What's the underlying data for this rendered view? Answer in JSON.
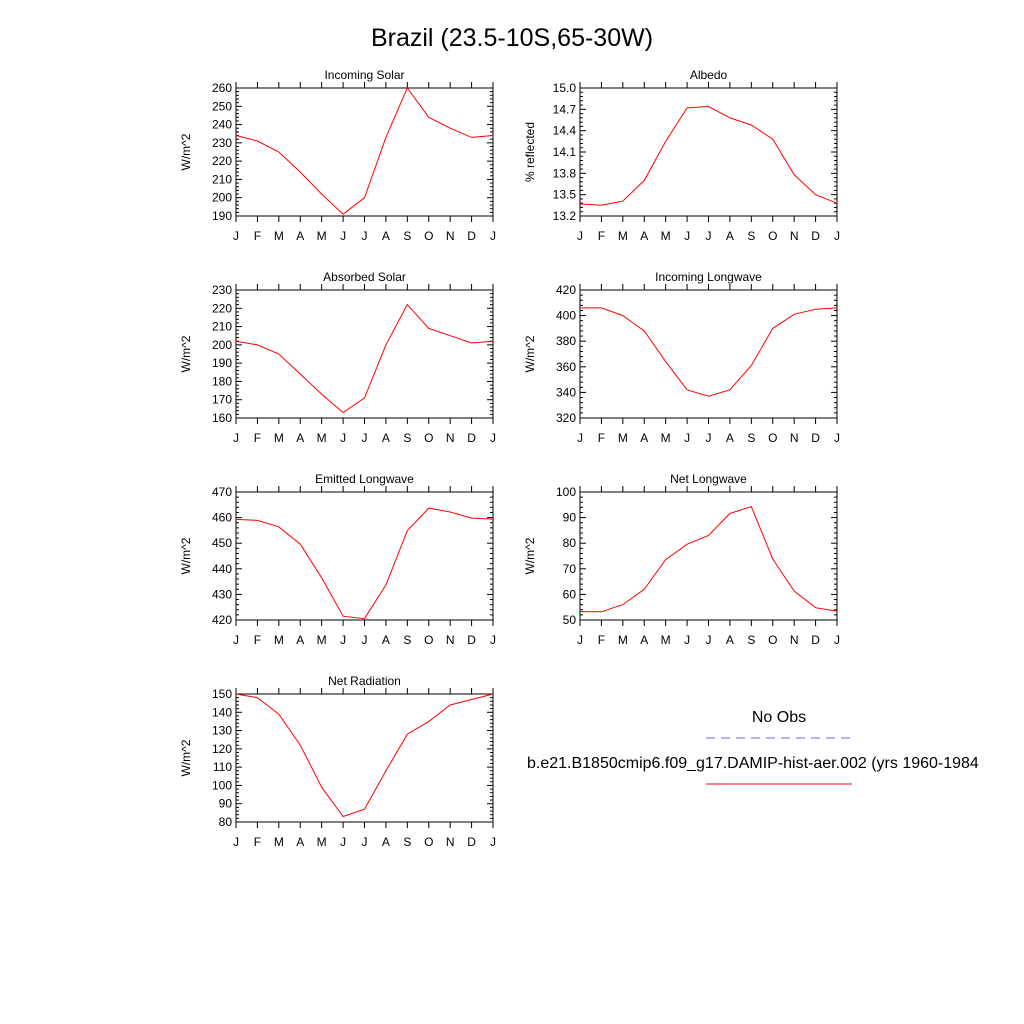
{
  "title": "Brazil (23.5-10S,65-30W)",
  "month_labels": [
    "J",
    "F",
    "M",
    "A",
    "M",
    "J",
    "J",
    "A",
    "S",
    "O",
    "N",
    "D",
    "J"
  ],
  "line_color": "#ff0000",
  "obs_color": "#6666ff",
  "legend": {
    "obs_label": "No Obs",
    "model_label": "b.e21.B1850cmip6.f09_g17.DAMIP-hist-aer.002 (yrs 1960-1984"
  },
  "chart_data": [
    {
      "type": "line",
      "title": "Incoming Solar",
      "ylabel": "W/m^2",
      "ylim": [
        190,
        260
      ],
      "yticks": [
        190,
        200,
        210,
        220,
        230,
        240,
        250,
        260
      ],
      "series": [
        {
          "values": [
            234,
            231,
            225,
            214,
            202,
            191,
            200,
            233,
            260,
            244,
            238,
            233,
            234
          ]
        }
      ]
    },
    {
      "type": "line",
      "title": "Albedo",
      "ylabel": "% reflected",
      "ylim": [
        13.2,
        15.0
      ],
      "yticks": [
        "13.2",
        "13.5",
        "13.8",
        "14.1",
        "14.4",
        "14.7",
        "15.0"
      ],
      "series": [
        {
          "values": [
            13.37,
            13.35,
            13.41,
            13.7,
            14.25,
            14.72,
            14.74,
            14.58,
            14.48,
            14.28,
            13.78,
            13.5,
            13.38
          ]
        }
      ]
    },
    {
      "type": "line",
      "title": "Absorbed Solar",
      "ylabel": "W/m^2",
      "ylim": [
        160,
        230
      ],
      "yticks": [
        160,
        170,
        180,
        190,
        200,
        210,
        220,
        230
      ],
      "series": [
        {
          "values": [
            202,
            200,
            195,
            184,
            173,
            163,
            171,
            200,
            222,
            209,
            205,
            201,
            202
          ]
        }
      ]
    },
    {
      "type": "line",
      "title": "Incoming Longwave",
      "ylabel": "W/m^2",
      "ylim": [
        320,
        420
      ],
      "yticks": [
        320,
        340,
        360,
        380,
        400,
        420
      ],
      "series": [
        {
          "values": [
            406,
            406,
            400,
            388,
            364,
            342,
            337,
            342,
            361,
            390,
            401,
            405,
            406
          ]
        }
      ]
    },
    {
      "type": "line",
      "title": "Emitted Longwave",
      "ylabel": "W/m^2",
      "ylim": [
        420,
        470
      ],
      "yticks": [
        420,
        430,
        440,
        450,
        460,
        470
      ],
      "series": [
        {
          "values": [
            459.3,
            458.9,
            456.4,
            449.6,
            436.5,
            421.5,
            420.5,
            433.7,
            454.9,
            463.7,
            462.2,
            459.8,
            459.4
          ]
        }
      ]
    },
    {
      "type": "line",
      "title": "Net Longwave",
      "ylabel": "W/m^2",
      "ylim": [
        50,
        100
      ],
      "yticks": [
        50,
        60,
        70,
        80,
        90,
        100
      ],
      "series": [
        {
          "values": [
            53.3,
            53.2,
            56,
            62,
            73.6,
            79.6,
            83,
            91.6,
            94.3,
            73.8,
            61.3,
            54.8,
            53.4
          ]
        }
      ]
    },
    {
      "type": "line",
      "title": "Net Radiation",
      "ylabel": "W/m^2",
      "ylim": [
        80,
        150
      ],
      "yticks": [
        80,
        90,
        100,
        110,
        120,
        130,
        140,
        150
      ],
      "series": [
        {
          "values": [
            150,
            148,
            139,
            122,
            99,
            83,
            87,
            108,
            128,
            135,
            144,
            147,
            150
          ]
        }
      ]
    }
  ]
}
